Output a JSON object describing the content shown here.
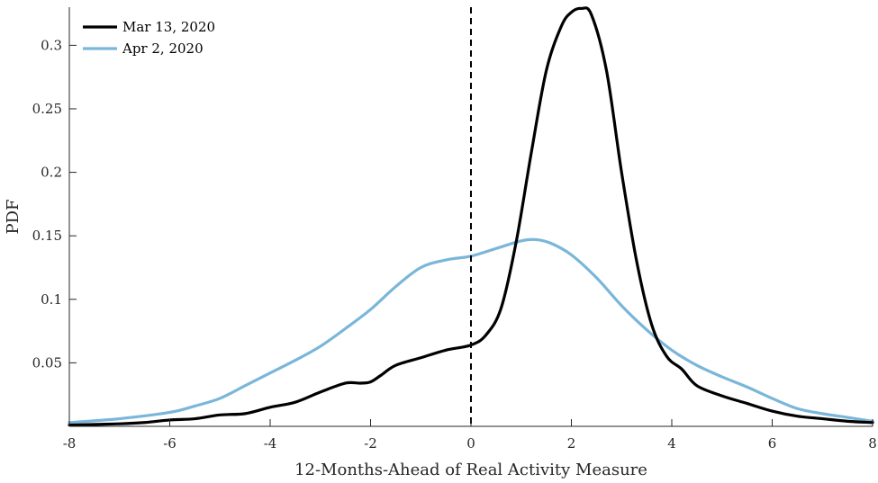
{
  "chart_data": {
    "type": "line",
    "title": "",
    "xlabel": "12-Months-Ahead of Real Activity Measure",
    "ylabel": "PDF",
    "xlim": [
      -8,
      8
    ],
    "ylim": [
      0,
      0.33
    ],
    "x_ticks": [
      -8,
      -6,
      -4,
      -2,
      0,
      2,
      4,
      6,
      8
    ],
    "x_tick_labels": [
      "-8",
      "-6",
      "-4",
      "-2",
      "0",
      "2",
      "4",
      "6",
      "8"
    ],
    "y_ticks": [
      0.05,
      0.1,
      0.15,
      0.2,
      0.25,
      0.3
    ],
    "y_tick_labels": [
      "0.05",
      "0.1",
      "0.15",
      "0.2",
      "0.25",
      "0.3"
    ],
    "grid": false,
    "legend_position": "top-left",
    "reference_line": {
      "x": 0,
      "style": "dashed",
      "color": "#000000"
    },
    "series": [
      {
        "name": "Mar 13, 2020",
        "color": "#000000",
        "x": [
          -8,
          -7,
          -6.5,
          -6,
          -5.5,
          -5,
          -4.5,
          -4,
          -3.5,
          -3,
          -2.5,
          -2.2,
          -2,
          -1.8,
          -1.5,
          -1,
          -0.5,
          0,
          0.3,
          0.6,
          0.9,
          1.2,
          1.5,
          1.8,
          2.0,
          2.2,
          2.4,
          2.7,
          3.0,
          3.3,
          3.6,
          3.9,
          4.2,
          4.5,
          5.0,
          5.5,
          6.0,
          6.5,
          7.0,
          7.5,
          8.0
        ],
        "y": [
          0.001,
          0.002,
          0.003,
          0.005,
          0.006,
          0.009,
          0.01,
          0.015,
          0.019,
          0.027,
          0.034,
          0.034,
          0.035,
          0.04,
          0.048,
          0.054,
          0.06,
          0.064,
          0.072,
          0.093,
          0.145,
          0.215,
          0.28,
          0.315,
          0.326,
          0.329,
          0.324,
          0.28,
          0.2,
          0.13,
          0.08,
          0.055,
          0.045,
          0.032,
          0.024,
          0.018,
          0.012,
          0.008,
          0.006,
          0.004,
          0.003
        ]
      },
      {
        "name": "Apr 2, 2020",
        "color": "#7ab6d9",
        "x": [
          -8,
          -7,
          -6,
          -5.5,
          -5,
          -4.5,
          -4,
          -3.5,
          -3,
          -2.5,
          -2,
          -1.5,
          -1,
          -0.5,
          0,
          0.5,
          1.0,
          1.3,
          1.6,
          2.0,
          2.5,
          3.0,
          3.5,
          4.0,
          4.5,
          5.0,
          5.5,
          6.0,
          6.5,
          7.0,
          7.5,
          8.0
        ],
        "y": [
          0.003,
          0.006,
          0.011,
          0.016,
          0.022,
          0.032,
          0.042,
          0.052,
          0.063,
          0.077,
          0.092,
          0.11,
          0.125,
          0.131,
          0.134,
          0.14,
          0.146,
          0.147,
          0.144,
          0.135,
          0.117,
          0.095,
          0.076,
          0.06,
          0.048,
          0.039,
          0.031,
          0.022,
          0.014,
          0.01,
          0.007,
          0.004
        ]
      }
    ]
  }
}
